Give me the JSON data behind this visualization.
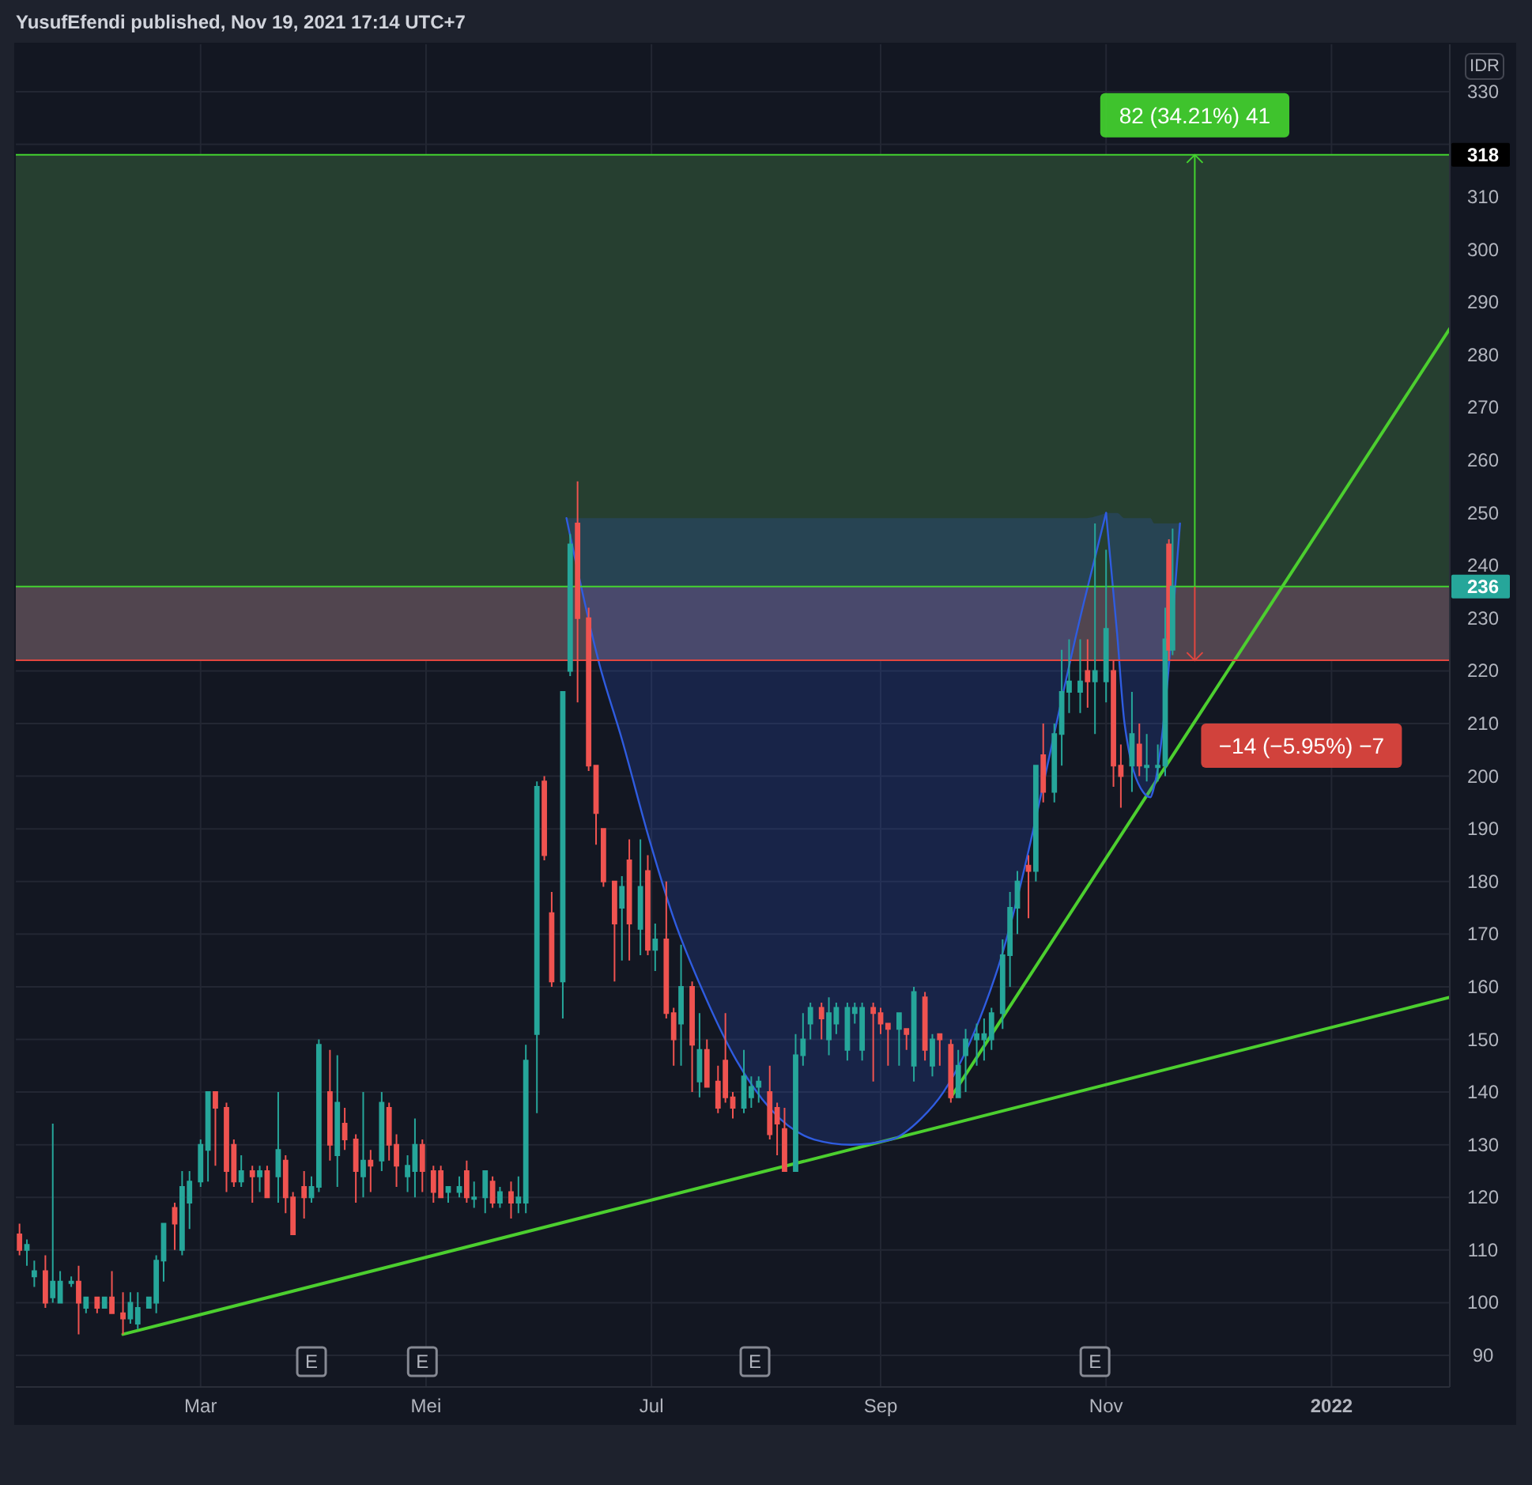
{
  "chart_data": {
    "type": "candlestick",
    "title": "YusufEfendi published, Nov 19, 2021 17:14 UTC+7",
    "ylabel": "IDR",
    "x": [
      "2021-01-11",
      "2021-01-13",
      "2021-01-15",
      "2021-01-18",
      "2021-01-20",
      "2021-01-22",
      "2021-01-25",
      "2021-01-27",
      "2021-01-29",
      "2021-02-01",
      "2021-02-03",
      "2021-02-05",
      "2021-02-08",
      "2021-02-10",
      "2021-02-12",
      "2021-02-15",
      "2021-02-17",
      "2021-02-19",
      "2021-02-22",
      "2021-02-24",
      "2021-02-26",
      "2021-03-01",
      "2021-03-03",
      "2021-03-05",
      "2021-03-08",
      "2021-03-10",
      "2021-03-12",
      "2021-03-15",
      "2021-03-17",
      "2021-03-19",
      "2021-03-22",
      "2021-03-24",
      "2021-03-26",
      "2021-03-29",
      "2021-03-31",
      "2021-04-02",
      "2021-04-05",
      "2021-04-07",
      "2021-04-09",
      "2021-04-12",
      "2021-04-14",
      "2021-04-16",
      "2021-04-19",
      "2021-04-21",
      "2021-04-23",
      "2021-04-26",
      "2021-04-28",
      "2021-04-30",
      "2021-05-03",
      "2021-05-05",
      "2021-05-07",
      "2021-05-10",
      "2021-05-12",
      "2021-05-14",
      "2021-05-17",
      "2021-05-19",
      "2021-05-21",
      "2021-05-24",
      "2021-05-26",
      "2021-05-28",
      "2021-05-31",
      "2021-06-02",
      "2021-06-04",
      "2021-06-07",
      "2021-06-09",
      "2021-06-11",
      "2021-06-14",
      "2021-06-16",
      "2021-06-18",
      "2021-06-21",
      "2021-06-23",
      "2021-06-25",
      "2021-06-28",
      "2021-06-30",
      "2021-07-02",
      "2021-07-05",
      "2021-07-07",
      "2021-07-09",
      "2021-07-12",
      "2021-07-14",
      "2021-07-16",
      "2021-07-19",
      "2021-07-21",
      "2021-07-23",
      "2021-07-26",
      "2021-07-28",
      "2021-07-30",
      "2021-08-02",
      "2021-08-04",
      "2021-08-06",
      "2021-08-09",
      "2021-08-11",
      "2021-08-13",
      "2021-08-16",
      "2021-08-18",
      "2021-08-20",
      "2021-08-23",
      "2021-08-25",
      "2021-08-27",
      "2021-08-30",
      "2021-09-01",
      "2021-09-03",
      "2021-09-06",
      "2021-09-08",
      "2021-09-10",
      "2021-09-13",
      "2021-09-15",
      "2021-09-17",
      "2021-09-20",
      "2021-09-22",
      "2021-09-24",
      "2021-09-27",
      "2021-09-29",
      "2021-10-01",
      "2021-10-04",
      "2021-10-06",
      "2021-10-08",
      "2021-10-11",
      "2021-10-13",
      "2021-10-15",
      "2021-10-18",
      "2021-10-20",
      "2021-10-22",
      "2021-10-25",
      "2021-10-27",
      "2021-10-29",
      "2021-11-01",
      "2021-11-03",
      "2021-11-05",
      "2021-11-08",
      "2021-11-10",
      "2021-11-12",
      "2021-11-15",
      "2021-11-17",
      "2021-11-18",
      "2021-11-19"
    ],
    "ohlc": [
      [
        113,
        115,
        109,
        110
      ],
      [
        110,
        112,
        107,
        111
      ],
      [
        105,
        108,
        103,
        106
      ],
      [
        106,
        109,
        99,
        100
      ],
      [
        101,
        134,
        100,
        104
      ],
      [
        100,
        106,
        100,
        104
      ],
      [
        104,
        105,
        103,
        104
      ],
      [
        104,
        107,
        94,
        100
      ],
      [
        99,
        101,
        98,
        101
      ],
      [
        101,
        101,
        98,
        99
      ],
      [
        99,
        101,
        99,
        101
      ],
      [
        101,
        106,
        98,
        98
      ],
      [
        98,
        102,
        94,
        97
      ],
      [
        97,
        102,
        96,
        100
      ],
      [
        96,
        102,
        95,
        99
      ],
      [
        99,
        101,
        99,
        101
      ],
      [
        100,
        109,
        98,
        108
      ],
      [
        108,
        115,
        104,
        115
      ],
      [
        118,
        119,
        110,
        115
      ],
      [
        110,
        125,
        109,
        122
      ],
      [
        119,
        125,
        114,
        123
      ],
      [
        123,
        131,
        122,
        130
      ],
      [
        129,
        140,
        123,
        140
      ],
      [
        140,
        140,
        126,
        137
      ],
      [
        137,
        138,
        121,
        125
      ],
      [
        130,
        131,
        122,
        123
      ],
      [
        123,
        128,
        122,
        125
      ],
      [
        125,
        126,
        119,
        124
      ],
      [
        124,
        126,
        121,
        125
      ],
      [
        125,
        126,
        120,
        120
      ],
      [
        124,
        140,
        119,
        129
      ],
      [
        127,
        128,
        117,
        120
      ],
      [
        120,
        121,
        113,
        113
      ],
      [
        122,
        125,
        116,
        120
      ],
      [
        120,
        124,
        119,
        122
      ],
      [
        122,
        150,
        121,
        149
      ],
      [
        140,
        148,
        127,
        130
      ],
      [
        128,
        147,
        122,
        138
      ],
      [
        134,
        137,
        129,
        131
      ],
      [
        131,
        132,
        119,
        125
      ],
      [
        124,
        140,
        120,
        127
      ],
      [
        127,
        129,
        121,
        126
      ],
      [
        127,
        140,
        125,
        138
      ],
      [
        137,
        138,
        127,
        130
      ],
      [
        130,
        132,
        122,
        126
      ],
      [
        124,
        128,
        121,
        126
      ],
      [
        125,
        135,
        120,
        130
      ],
      [
        130,
        131,
        121,
        125
      ],
      [
        125,
        126,
        119,
        121
      ],
      [
        125,
        126,
        120,
        120
      ],
      [
        121,
        122,
        119,
        122
      ],
      [
        121,
        124,
        120,
        122
      ],
      [
        125,
        127,
        119,
        120
      ],
      [
        120,
        123,
        118,
        120
      ],
      [
        120,
        125,
        117,
        125
      ],
      [
        123,
        124,
        118,
        119
      ],
      [
        119,
        122,
        118,
        121
      ],
      [
        121,
        123,
        116,
        119
      ],
      [
        119,
        124,
        117,
        120
      ],
      [
        119,
        149,
        117,
        146
      ],
      [
        151,
        199,
        136,
        198
      ],
      [
        199,
        200,
        184,
        185
      ],
      [
        174,
        178,
        160,
        161
      ],
      [
        161,
        216,
        154,
        216
      ],
      [
        220,
        246,
        219,
        244
      ],
      [
        248,
        256,
        214,
        230
      ],
      [
        230,
        232,
        201,
        202
      ],
      [
        202,
        202,
        187,
        193
      ],
      [
        190,
        190,
        179,
        180
      ],
      [
        180,
        180,
        161,
        172
      ],
      [
        175,
        181,
        165,
        179
      ],
      [
        184,
        188,
        165,
        172
      ],
      [
        171,
        188,
        166,
        179
      ],
      [
        182,
        185,
        166,
        167
      ],
      [
        167,
        172,
        163,
        169
      ],
      [
        169,
        180,
        154,
        155
      ],
      [
        155,
        156,
        145,
        150
      ],
      [
        153,
        168,
        145,
        160
      ],
      [
        160,
        161,
        140,
        149
      ],
      [
        142,
        155,
        139,
        148
      ],
      [
        148,
        150,
        141,
        141
      ],
      [
        142,
        145,
        136,
        137
      ],
      [
        146,
        155,
        138,
        139
      ],
      [
        139,
        140,
        135,
        137
      ],
      [
        137,
        148,
        136,
        143
      ],
      [
        139,
        143,
        137,
        141
      ],
      [
        141,
        143,
        138,
        142
      ],
      [
        140,
        145,
        131,
        132
      ],
      [
        137,
        138,
        128,
        134
      ],
      [
        133,
        137,
        125,
        125
      ],
      [
        125,
        151,
        125,
        147
      ],
      [
        147,
        155,
        145,
        150
      ],
      [
        153,
        157,
        150,
        156
      ],
      [
        156,
        157,
        150,
        154
      ],
      [
        150,
        158,
        147,
        155
      ],
      [
        153,
        157,
        151,
        156
      ],
      [
        148,
        157,
        146,
        156
      ],
      [
        155,
        157,
        153,
        156
      ],
      [
        148,
        157,
        146,
        156
      ],
      [
        156,
        157,
        142,
        155
      ],
      [
        155,
        156,
        151,
        153
      ],
      [
        153,
        153,
        145,
        152
      ],
      [
        152,
        155,
        145,
        155
      ],
      [
        152,
        152,
        148,
        151
      ],
      [
        145,
        160,
        142,
        159
      ],
      [
        158,
        159,
        146,
        148
      ],
      [
        145,
        151,
        143,
        150
      ],
      [
        151,
        151,
        145,
        150
      ],
      [
        149,
        150,
        138,
        139
      ],
      [
        139,
        148,
        139,
        145
      ],
      [
        147,
        152,
        140,
        150
      ],
      [
        150,
        153,
        145,
        151
      ],
      [
        150,
        154,
        146,
        151
      ],
      [
        150,
        156,
        148,
        155
      ],
      [
        155,
        169,
        152,
        166
      ],
      [
        166,
        178,
        160,
        175
      ],
      [
        175,
        182,
        170,
        180
      ],
      [
        183,
        185,
        173,
        182
      ],
      [
        182,
        202,
        180,
        202
      ],
      [
        204,
        210,
        195,
        197
      ],
      [
        197,
        210,
        195,
        208
      ],
      [
        208,
        224,
        202,
        216
      ],
      [
        216,
        226,
        212,
        218
      ],
      [
        216,
        226,
        212,
        218
      ],
      [
        220,
        226,
        213,
        218
      ],
      [
        218,
        248,
        208,
        220
      ],
      [
        218,
        243,
        214,
        228
      ],
      [
        220,
        222,
        198,
        202
      ],
      [
        202,
        206,
        194,
        200
      ],
      [
        202,
        216,
        197,
        208
      ],
      [
        206,
        210,
        200,
        202
      ],
      [
        202,
        208,
        199,
        202
      ],
      [
        202,
        206,
        199,
        202
      ],
      [
        202,
        232,
        200,
        226
      ],
      [
        244,
        245,
        222,
        224
      ],
      [
        224,
        247,
        223,
        236
      ]
    ],
    "colors": [
      "#ef5350",
      "#26a69a",
      "#26a69a",
      "#ef5350",
      "#26a69a",
      "#26a69a",
      "#26a69a",
      "#ef5350",
      "#26a69a",
      "#ef5350",
      "#26a69a",
      "#ef5350",
      "#ef5350",
      "#26a69a",
      "#26a69a",
      "#26a69a",
      "#26a69a",
      "#26a69a",
      "#ef5350",
      "#26a69a",
      "#26a69a",
      "#26a69a",
      "#26a69a",
      "#ef5350",
      "#ef5350",
      "#ef5350",
      "#26a69a",
      "#ef5350",
      "#26a69a",
      "#ef5350",
      "#26a69a",
      "#ef5350",
      "#ef5350",
      "#ef5350",
      "#26a69a",
      "#26a69a",
      "#ef5350",
      "#26a69a",
      "#ef5350",
      "#ef5350",
      "#26a69a",
      "#ef5350",
      "#26a69a",
      "#ef5350",
      "#ef5350",
      "#26a69a",
      "#26a69a",
      "#ef5350",
      "#ef5350",
      "#ef5350",
      "#26a69a",
      "#26a69a",
      "#ef5350",
      "#26a69a",
      "#26a69a",
      "#ef5350",
      "#26a69a",
      "#ef5350",
      "#26a69a",
      "#26a69a",
      "#26a69a",
      "#ef5350",
      "#ef5350",
      "#26a69a",
      "#26a69a",
      "#ef5350",
      "#ef5350",
      "#ef5350",
      "#ef5350",
      "#ef5350",
      "#26a69a",
      "#ef5350",
      "#26a69a",
      "#ef5350",
      "#26a69a",
      "#ef5350",
      "#ef5350",
      "#26a69a",
      "#ef5350",
      "#26a69a",
      "#ef5350",
      "#ef5350",
      "#ef5350",
      "#ef5350",
      "#26a69a",
      "#26a69a",
      "#26a69a",
      "#ef5350",
      "#ef5350",
      "#ef5350",
      "#26a69a",
      "#26a69a",
      "#26a69a",
      "#ef5350",
      "#26a69a",
      "#26a69a",
      "#26a69a",
      "#26a69a",
      "#26a69a",
      "#ef5350",
      "#ef5350",
      "#ef5350",
      "#26a69a",
      "#ef5350",
      "#26a69a",
      "#ef5350",
      "#26a69a",
      "#ef5350",
      "#ef5350",
      "#26a69a",
      "#26a69a",
      "#26a69a",
      "#26a69a",
      "#26a69a",
      "#26a69a",
      "#26a69a",
      "#26a69a",
      "#ef5350",
      "#26a69a",
      "#ef5350",
      "#26a69a",
      "#26a69a",
      "#26a69a",
      "#26a69a",
      "#ef5350",
      "#26a69a",
      "#26a69a",
      "#ef5350",
      "#ef5350",
      "#26a69a",
      "#ef5350",
      "#26a69a",
      "#26a69a",
      "#26a69a",
      "#ef5350",
      "#26a69a"
    ],
    "series": [
      {
        "type": "line",
        "x": [
          "2021-02-08",
          "2022-02-02"
        ],
        "values": [
          94,
          158
        ],
        "color": "#4ccf2f"
      },
      {
        "type": "line",
        "x": [
          "2021-09-20",
          "2022-02-02"
        ],
        "values": [
          139,
          285
        ],
        "color": "#4ccf2f"
      },
      {
        "type": "line",
        "x": [
          "2021-06-08",
          "2021-06-17",
          "2021-06-23",
          "2021-06-30",
          "2021-07-07",
          "2021-07-15",
          "2021-07-24",
          "2021-08-14",
          "2021-08-24",
          "2021-09-04",
          "2021-09-12",
          "2021-09-18",
          "2021-10-02",
          "2021-10-26",
          "2021-11-01"
        ],
        "values": [
          249,
          221,
          207,
          189,
          173,
          159,
          146,
          131,
          130,
          131,
          135,
          140,
          162,
          233,
          250
        ],
        "lower": [
          249,
          221,
          207,
          189,
          173,
          159,
          146,
          131,
          130,
          131,
          135,
          140,
          162,
          233,
          250
        ],
        "upper": [
          249,
          249,
          249,
          249,
          249,
          249,
          249,
          249,
          249,
          249,
          249,
          249,
          249,
          249,
          250
        ],
        "color": "#2f5ce0"
      },
      {
        "type": "line",
        "x": [
          "2021-11-01",
          "2021-11-04",
          "2021-11-06",
          "2021-11-11",
          "2021-11-13",
          "2021-11-14",
          "2021-11-21"
        ],
        "values": [
          250,
          227,
          210,
          197,
          196,
          198,
          248
        ],
        "lower": [
          250,
          227,
          210,
          197,
          196,
          198,
          248
        ],
        "upper": [
          250,
          250,
          249,
          249,
          249,
          248,
          248
        ],
        "color": "#2f5ce0"
      }
    ],
    "bands": [
      {
        "axis": "y",
        "from": 236,
        "to": 318,
        "color": "#263f30"
      },
      {
        "axis": "y",
        "from": 236,
        "to": 222,
        "color": "#51454f"
      }
    ],
    "ref_lines": [
      {
        "axis": "y",
        "value": 318,
        "label": "318",
        "color": "#43d32f"
      },
      {
        "axis": "y",
        "value": 236,
        "label": "236",
        "color": "#43d32f"
      },
      {
        "axis": "y",
        "value": 222,
        "color": "#e2463f"
      }
    ],
    "annotations": [
      {
        "text": "82 (34.21%) 41",
        "x": "2021-11-25",
        "y": 318
      },
      "−14 (−5.95%) −7",
      {
        "text": "E",
        "x": "2021-03-31"
      },
      {
        "text": "E",
        "x": "2021-04-30"
      },
      {
        "text": "E",
        "x": "2021-07-29"
      },
      {
        "text": "E",
        "x": "2021-10-29"
      }
    ],
    "xlim": [
      "2021-01-10",
      "2022-02-02"
    ],
    "ylim": [
      84,
      339
    ],
    "xticks": [
      {
        "value": "2021-03-01",
        "label": "Mar"
      },
      {
        "value": "2021-05-01",
        "label": "Mei"
      },
      {
        "value": "2021-07-01",
        "label": "Jul"
      },
      {
        "value": "2021-09-01",
        "label": "Sep"
      },
      {
        "value": "2021-11-01",
        "label": "Nov"
      },
      {
        "value": "2022-01-01",
        "label": "2022"
      }
    ],
    "yticks": [
      90,
      100,
      110,
      120,
      130,
      140,
      150,
      160,
      170,
      180,
      190,
      200,
      210,
      220,
      230,
      240,
      250,
      260,
      270,
      280,
      290,
      300,
      310,
      {
        "value": 320,
        "label": null
      },
      330
    ],
    "grid": true
  }
}
